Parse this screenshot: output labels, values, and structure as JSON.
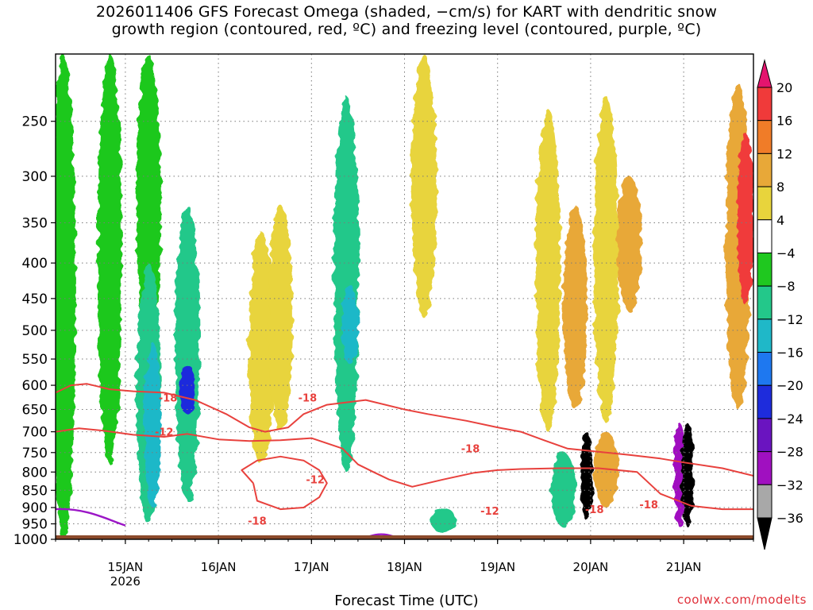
{
  "title": {
    "line1": "2026011406 GFS Forecast Omega (shaded, −cm/s) for KART with dendritic snow",
    "line2": "growth region (contoured, red, ºC) and freezing level (contoured, purple, ºC)"
  },
  "footer": {
    "xlabel": "Forecast Time (UTC)",
    "credit": "coolwx.com/modelts"
  },
  "colors": {
    "background": "#ffffff",
    "ground": "#8b4a2b",
    "dgz_contour": "#e8413d",
    "freezing_contour": "#9b16c6",
    "grid": "#7a7a7a",
    "credit": "#e0303a"
  },
  "chart_data": {
    "type": "heatmap",
    "title": "2026011406 GFS Forecast Omega (shaded, −cm/s) for KART with dendritic snow growth region (contoured, red, ºC) and freezing level (contoured, purple, ºC)",
    "xlabel": "Forecast Time (UTC)",
    "ylabel": "",
    "grid": true,
    "y_scale": "log-pressure",
    "ylim_hpa": [
      1000,
      200
    ],
    "xlim": [
      "2026-01-14T06",
      "2026-01-21T18"
    ],
    "y_ticks": [
      250,
      300,
      350,
      400,
      450,
      500,
      550,
      600,
      650,
      700,
      750,
      800,
      850,
      900,
      950,
      1000
    ],
    "x_ticks": [
      {
        "value": "2026-01-15T00",
        "label": "15JAN",
        "sublabel": "2026"
      },
      {
        "value": "2026-01-16T00",
        "label": "16JAN"
      },
      {
        "value": "2026-01-17T00",
        "label": "17JAN"
      },
      {
        "value": "2026-01-18T00",
        "label": "18JAN"
      },
      {
        "value": "2026-01-19T00",
        "label": "19JAN"
      },
      {
        "value": "2026-01-20T00",
        "label": "20JAN"
      },
      {
        "value": "2026-01-21T00",
        "label": "21JAN"
      }
    ],
    "colorbar": {
      "ticks": [
        20,
        16,
        12,
        8,
        4,
        -4,
        -8,
        -12,
        -16,
        -20,
        -24,
        -28,
        -32,
        -36
      ],
      "bins": [
        {
          "from": 20,
          "to": 24,
          "color": "#e4146e"
        },
        {
          "from": 16,
          "to": 20,
          "color": "#f03a3a"
        },
        {
          "from": 12,
          "to": 16,
          "color": "#f07c28"
        },
        {
          "from": 8,
          "to": 12,
          "color": "#e8a838"
        },
        {
          "from": 4,
          "to": 8,
          "color": "#e8d43c"
        },
        {
          "from": -4,
          "to": 4,
          "color": "#ffffff"
        },
        {
          "from": -8,
          "to": -4,
          "color": "#1fc81f"
        },
        {
          "from": -12,
          "to": -8,
          "color": "#23c88a"
        },
        {
          "from": -16,
          "to": -12,
          "color": "#1fb8c8"
        },
        {
          "from": -20,
          "to": -16,
          "color": "#1e78f0"
        },
        {
          "from": -24,
          "to": -20,
          "color": "#1e2cdc"
        },
        {
          "from": -28,
          "to": -24,
          "color": "#6a14c0"
        },
        {
          "from": -32,
          "to": -28,
          "color": "#a010c0"
        },
        {
          "from": -36,
          "to": -32,
          "color": "#a8a8a8"
        },
        {
          "from": -40,
          "to": -36,
          "color": "#000000"
        }
      ]
    },
    "omega_features": [
      {
        "t": "2026-01-14T08",
        "p_top": 200,
        "p_bot": 1000,
        "value": -6
      },
      {
        "t": "2026-01-14T20",
        "p_top": 200,
        "p_bot": 780,
        "value": -6
      },
      {
        "t": "2026-01-15T06",
        "p_top": 200,
        "p_bot": 560,
        "value": -6
      },
      {
        "t": "2026-01-15T06",
        "p_top": 400,
        "p_bot": 950,
        "value": -10
      },
      {
        "t": "2026-01-15T07",
        "p_top": 520,
        "p_bot": 900,
        "value": -14
      },
      {
        "t": "2026-01-15T16",
        "p_top": 330,
        "p_bot": 880,
        "value": -10
      },
      {
        "t": "2026-01-15T16",
        "p_top": 560,
        "p_bot": 660,
        "value": -22
      },
      {
        "t": "2026-01-16T11",
        "p_top": 360,
        "p_bot": 780,
        "value": 6
      },
      {
        "t": "2026-01-16T16",
        "p_top": 330,
        "p_bot": 700,
        "value": 6
      },
      {
        "t": "2026-01-17T09",
        "p_top": 230,
        "p_bot": 800,
        "value": -10
      },
      {
        "t": "2026-01-17T10",
        "p_top": 430,
        "p_bot": 560,
        "value": -16
      },
      {
        "t": "2026-01-18T05",
        "p_top": 200,
        "p_bot": 480,
        "value": 6
      },
      {
        "t": "2026-01-18T10",
        "p_top": 900,
        "p_bot": 980,
        "value": -12
      },
      {
        "t": "2026-01-19T13",
        "p_top": 240,
        "p_bot": 700,
        "value": 6
      },
      {
        "t": "2026-01-19T17",
        "p_top": 750,
        "p_bot": 960,
        "value": -12
      },
      {
        "t": "2026-01-19T20",
        "p_top": 330,
        "p_bot": 650,
        "value": 10
      },
      {
        "t": "2026-01-19T23",
        "p_top": 700,
        "p_bot": 940,
        "value": -38
      },
      {
        "t": "2026-01-20T04",
        "p_top": 230,
        "p_bot": 680,
        "value": 6
      },
      {
        "t": "2026-01-20T04",
        "p_top": 700,
        "p_bot": 900,
        "value": 10
      },
      {
        "t": "2026-01-20T10",
        "p_top": 300,
        "p_bot": 470,
        "value": 10
      },
      {
        "t": "2026-01-20T23",
        "p_top": 680,
        "p_bot": 960,
        "value": -30
      },
      {
        "t": "2026-01-21T01",
        "p_top": 680,
        "p_bot": 960,
        "value": -38
      },
      {
        "t": "2026-01-21T14",
        "p_top": 220,
        "p_bot": 650,
        "value": 10
      },
      {
        "t": "2026-01-21T16",
        "p_top": 260,
        "p_bot": 460,
        "value": 18
      }
    ],
    "dgz_contours": [
      {
        "label": "-18",
        "label_time": "2026-01-15T11",
        "label_p": 625
      },
      {
        "label": "-12",
        "label_time": "2026-01-15T10",
        "label_p": 700
      },
      {
        "label": "-18",
        "label_time": "2026-01-16T23",
        "label_p": 625
      },
      {
        "label": "-18",
        "label_time": "2026-01-16T10",
        "label_p": 940
      },
      {
        "label": "-12",
        "label_time": "2026-01-17T01",
        "label_p": 820
      },
      {
        "label": "-18",
        "label_time": "2026-01-18T17",
        "label_p": 740
      },
      {
        "label": "-12",
        "label_time": "2026-01-18T22",
        "label_p": 910
      },
      {
        "label": "-18",
        "label_time": "2026-01-20T01",
        "label_p": 905
      },
      {
        "label": "-18",
        "label_time": "2026-01-20T15",
        "label_p": 890
      }
    ],
    "freezing_level_segments": [
      {
        "from": "2026-01-14T06",
        "to": "2026-01-15T00",
        "p_start": 905,
        "p_end": 955
      },
      {
        "from": "2026-01-17T15",
        "to": "2026-01-17T21",
        "p": 990
      }
    ]
  }
}
